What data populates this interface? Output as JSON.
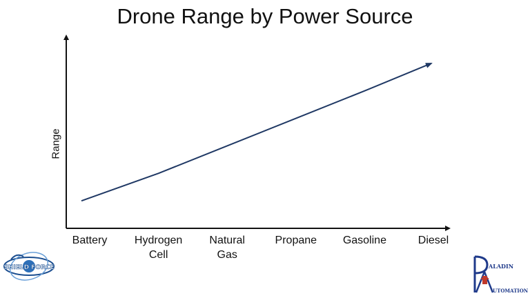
{
  "chart_data": {
    "type": "line",
    "title": "Drone Range by Power Source",
    "xlabel": "",
    "ylabel": "Range",
    "categories": [
      "Battery",
      "Hydrogen\nCell",
      "Natural\nGas",
      "Propane",
      "Gasoline",
      "Diesel"
    ],
    "series": [
      {
        "values": [
          1,
          2,
          3,
          4,
          5,
          6
        ]
      }
    ],
    "ylim": [
      0,
      7
    ],
    "grid": false,
    "legend": "none",
    "line_color": "#1f3864"
  },
  "logos": {
    "left": {
      "text": "SHIELD FORCE"
    },
    "right": {
      "text_top": "ALADIN",
      "text_bottom": "UTOMATION"
    }
  }
}
